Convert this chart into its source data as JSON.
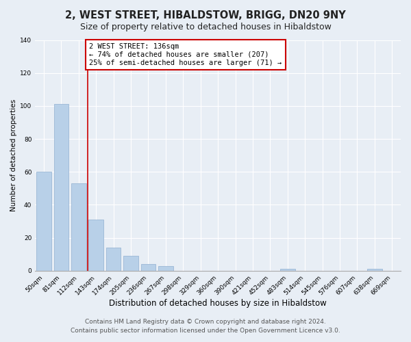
{
  "title": "2, WEST STREET, HIBALDSTOW, BRIGG, DN20 9NY",
  "subtitle": "Size of property relative to detached houses in Hibaldstow",
  "xlabel": "Distribution of detached houses by size in Hibaldstow",
  "ylabel": "Number of detached properties",
  "bar_labels": [
    "50sqm",
    "81sqm",
    "112sqm",
    "143sqm",
    "174sqm",
    "205sqm",
    "236sqm",
    "267sqm",
    "298sqm",
    "329sqm",
    "360sqm",
    "390sqm",
    "421sqm",
    "452sqm",
    "483sqm",
    "514sqm",
    "545sqm",
    "576sqm",
    "607sqm",
    "638sqm",
    "669sqm"
  ],
  "bar_values": [
    60,
    101,
    53,
    31,
    14,
    9,
    4,
    3,
    0,
    0,
    0,
    0,
    0,
    0,
    1,
    0,
    0,
    0,
    0,
    1,
    0
  ],
  "bar_color": "#b8d0e8",
  "bar_edge_color": "#90b0d0",
  "vline_color": "#cc0000",
  "annotation_line1": "2 WEST STREET: 136sqm",
  "annotation_line2": "← 74% of detached houses are smaller (207)",
  "annotation_line3": "25% of semi-detached houses are larger (71) →",
  "annotation_box_facecolor": "#ffffff",
  "annotation_box_edgecolor": "#cc0000",
  "ylim": [
    0,
    140
  ],
  "yticks": [
    0,
    20,
    40,
    60,
    80,
    100,
    120,
    140
  ],
  "footer1": "Contains HM Land Registry data © Crown copyright and database right 2024.",
  "footer2": "Contains public sector information licensed under the Open Government Licence v3.0.",
  "title_fontsize": 10.5,
  "subtitle_fontsize": 9,
  "xlabel_fontsize": 8.5,
  "ylabel_fontsize": 7.5,
  "tick_fontsize": 6.5,
  "annotation_fontsize": 7.5,
  "footer_fontsize": 6.5,
  "bg_color": "#e8eef5",
  "grid_color": "#ffffff",
  "spine_color": "#aaaaaa"
}
